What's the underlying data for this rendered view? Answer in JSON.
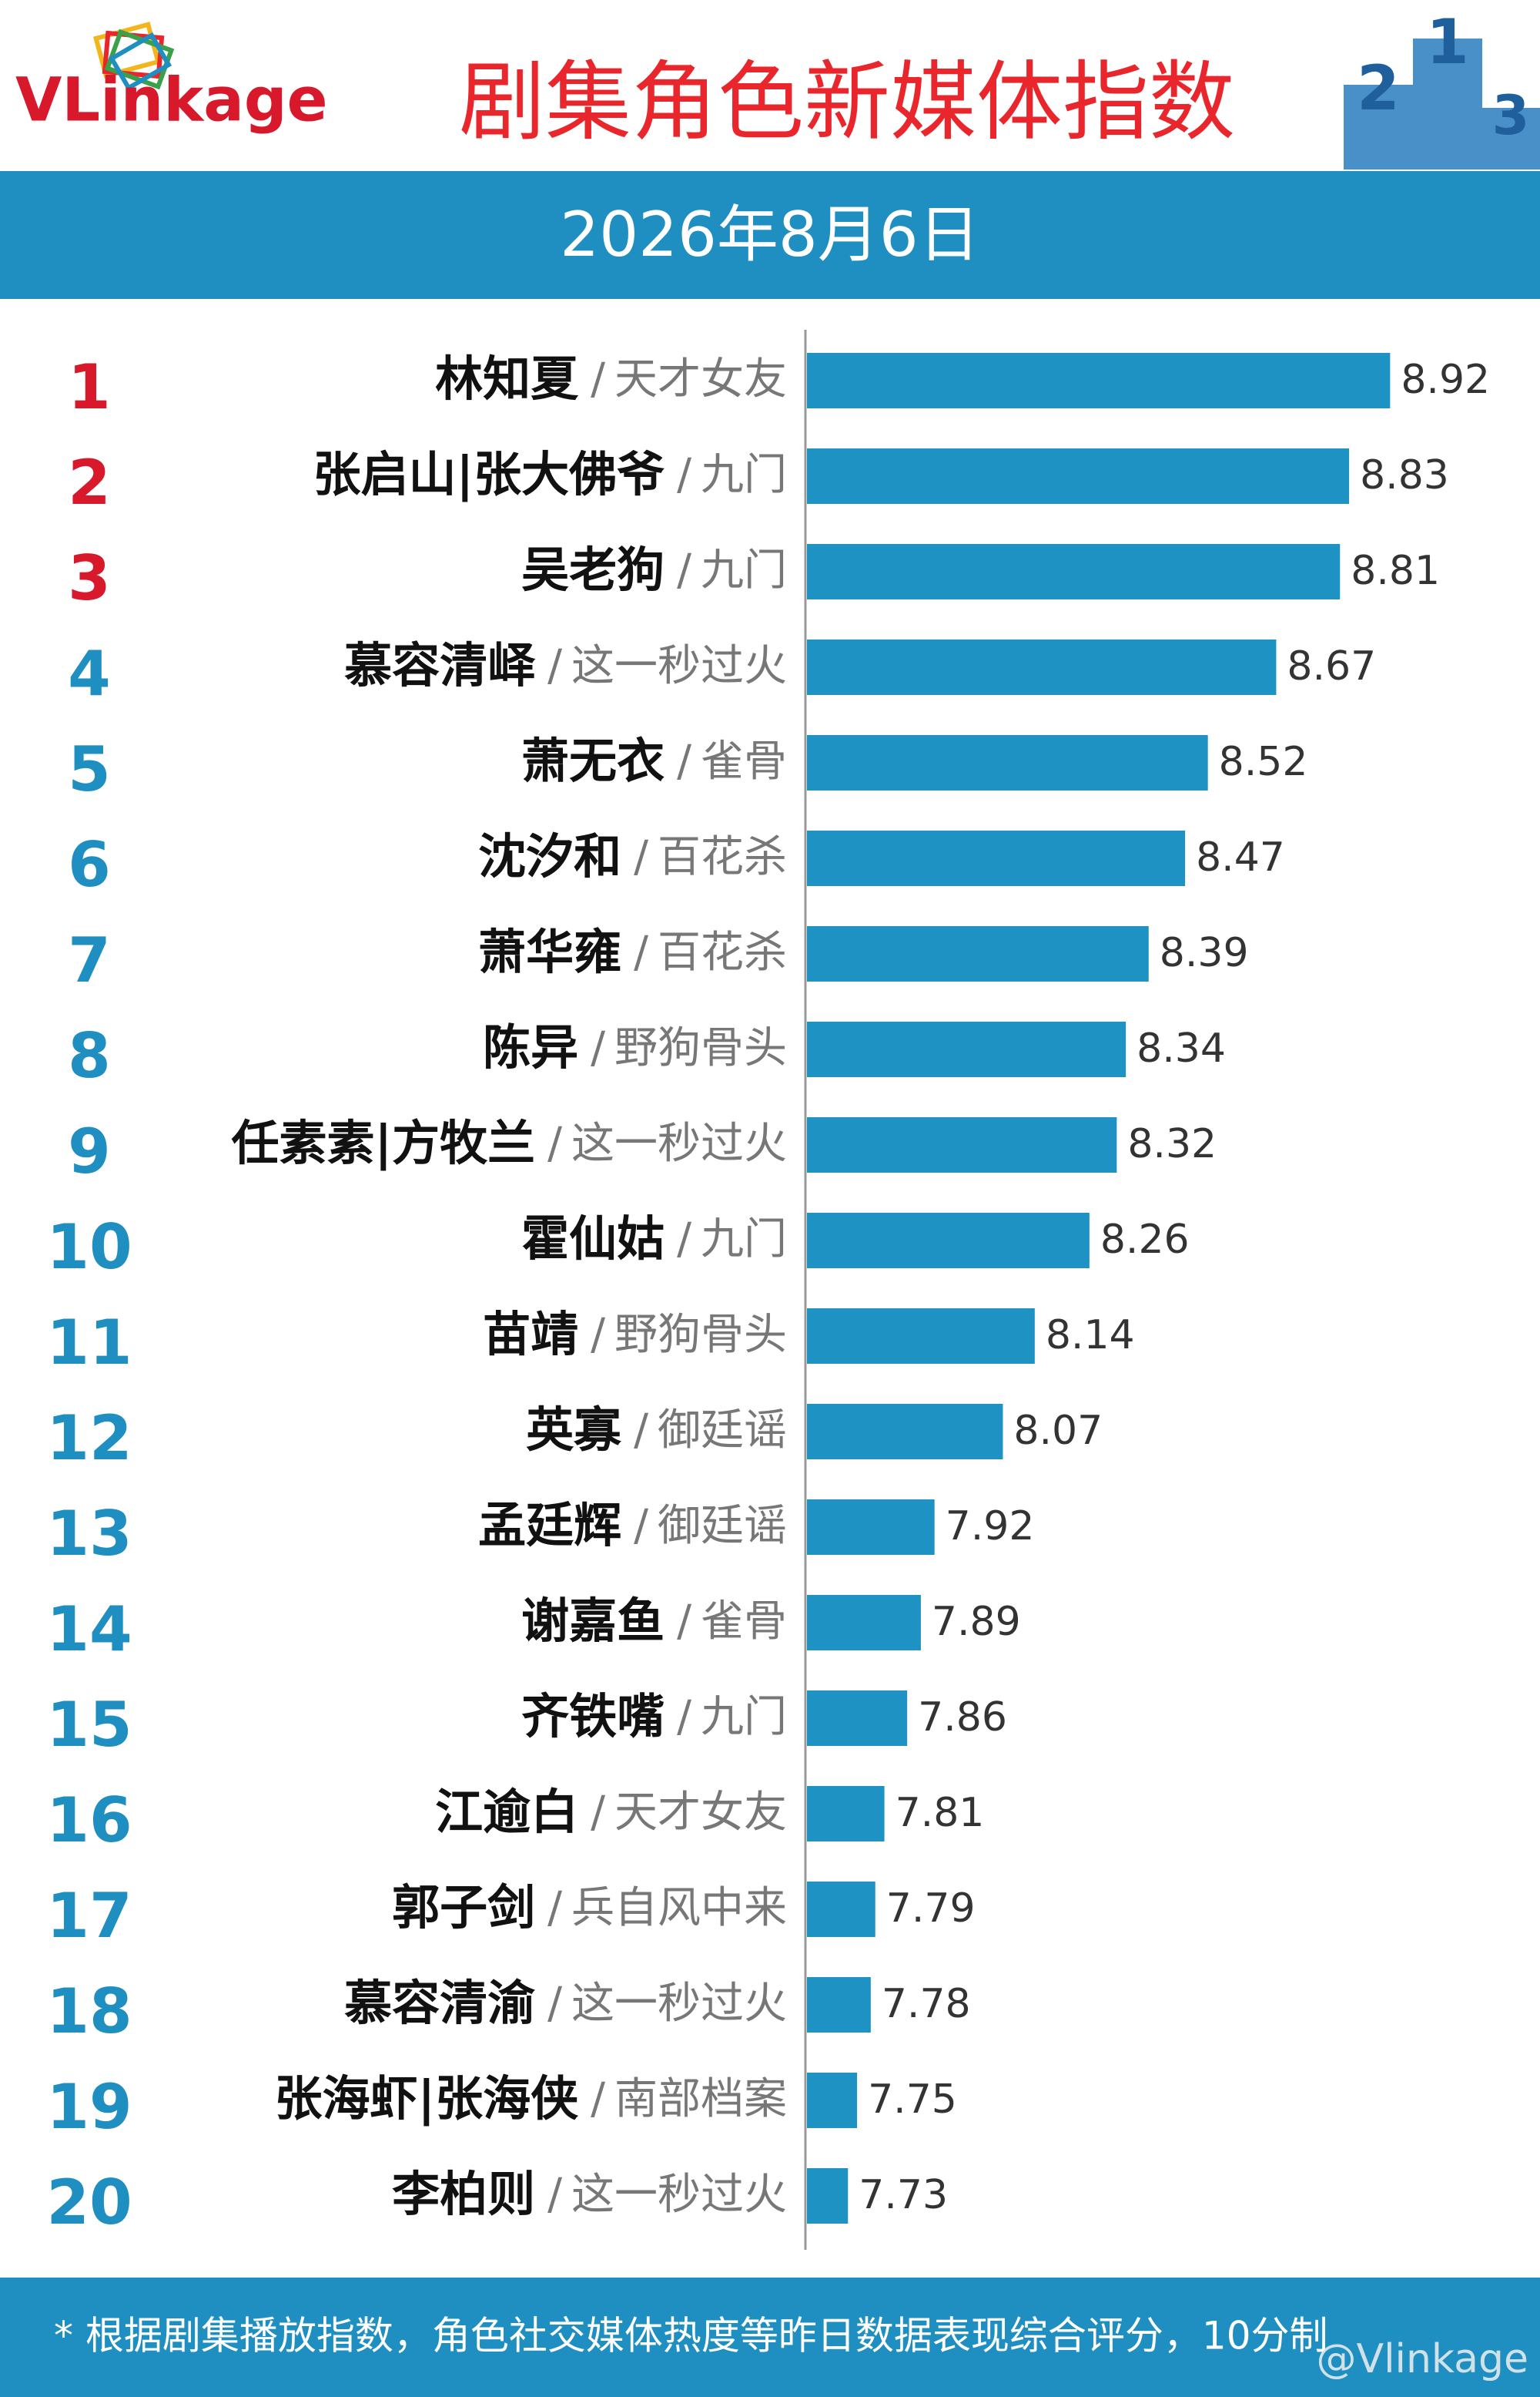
{
  "logo": "VLinkage",
  "podium": [
    2,
    1,
    3
  ],
  "chart_data": {
    "type": "bar",
    "title": "剧集角色新媒体指数",
    "subtitle": "2026年8月6日",
    "ranks": [
      1,
      2,
      3,
      4,
      5,
      6,
      7,
      8,
      9,
      10,
      11,
      12,
      13,
      14,
      15,
      16,
      17,
      18,
      19,
      20
    ],
    "rank_colors": [
      "#d7192b",
      "#d7192b",
      "#d7192b",
      "#1e8fc0",
      "#1e8fc0",
      "#1e8fc0",
      "#1e8fc0",
      "#1e8fc0",
      "#1e8fc0",
      "#1e8fc0",
      "#1e8fc0",
      "#1e8fc0",
      "#1e8fc0",
      "#1e8fc0",
      "#1e8fc0",
      "#1e8fc0",
      "#1e8fc0",
      "#1e8fc0",
      "#1e8fc0",
      "#1e8fc0"
    ],
    "categories": [
      "林知夏",
      "张启山|张大佛爷",
      "吴老狗",
      "慕容清峄",
      "萧无衣",
      "沈汐和",
      "萧华雍",
      "陈异",
      "任素素|方牧兰",
      "霍仙姑",
      "苗靖",
      "英寡",
      "孟廷辉",
      "谢嘉鱼",
      "齐铁嘴",
      "江逾白",
      "郭子剑",
      "慕容清渝",
      "张海虾|张海侠",
      "李柏则"
    ],
    "separator": "/",
    "dramas": [
      "天才女友",
      "九门",
      "九门",
      "这一秒过火",
      "雀骨",
      "百花杀",
      "百花杀",
      "野狗骨头",
      "这一秒过火",
      "九门",
      "野狗骨头",
      "御廷谣",
      "御廷谣",
      "雀骨",
      "九门",
      "天才女友",
      "兵自风中来",
      "这一秒过火",
      "南部档案",
      "这一秒过火"
    ],
    "values": [
      8.92,
      8.83,
      8.81,
      8.67,
      8.52,
      8.47,
      8.39,
      8.34,
      8.32,
      8.26,
      8.14,
      8.07,
      7.92,
      7.89,
      7.86,
      7.81,
      7.79,
      7.78,
      7.75,
      7.73
    ],
    "color": "#1e93c3",
    "xlim": [
      7.64,
      9.2
    ],
    "footnote": "* 根据剧集播放指数，角色社交媒体热度等昨日数据表现综合评分，10分制",
    "watermark": "@Vlinkage"
  }
}
